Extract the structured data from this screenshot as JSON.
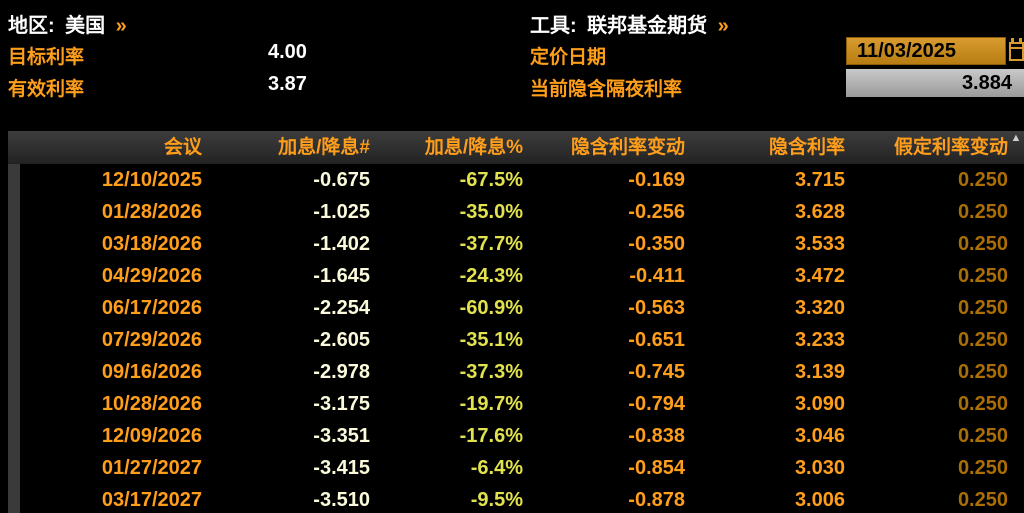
{
  "colors": {
    "orange": "#ff9e1b",
    "white": "#ffffff",
    "pale_yellow": "#fbfbdc",
    "yellow": "#e2e24e",
    "dim_orange": "#a96e05",
    "amber_top": "#d79b2f",
    "amber_bottom": "#b87d12",
    "gray_top": "#c9c9c9",
    "gray_bottom": "#9a9a9a",
    "header_top": "#3d3d3d",
    "header_bottom": "#222222",
    "gutter": "#3a3a3a"
  },
  "top": {
    "region": {
      "label": "地区:",
      "value": "美国",
      "chevron": "»"
    },
    "tool": {
      "label": "工具:",
      "value": "联邦基金期货",
      "chevron": "»"
    },
    "target_rate": {
      "label": "目标利率",
      "value": "4.00"
    },
    "effective_rate": {
      "label": "有效利率",
      "value": "3.87"
    },
    "pricing_date": {
      "label": "定价日期",
      "value": "11/03/2025"
    },
    "implied_overnight": {
      "label": "当前隐含隔夜利率",
      "value": "3.884"
    }
  },
  "table": {
    "columns": [
      "会议",
      "加息/降息#",
      "加息/降息%",
      "隐含利率变动",
      "隐含利率",
      "假定利率变动"
    ],
    "scroll_arrow": "▲",
    "rows": [
      [
        "12/10/2025",
        "-0.675",
        "-67.5%",
        "-0.169",
        "3.715",
        "0.250"
      ],
      [
        "01/28/2026",
        "-1.025",
        "-35.0%",
        "-0.256",
        "3.628",
        "0.250"
      ],
      [
        "03/18/2026",
        "-1.402",
        "-37.7%",
        "-0.350",
        "3.533",
        "0.250"
      ],
      [
        "04/29/2026",
        "-1.645",
        "-24.3%",
        "-0.411",
        "3.472",
        "0.250"
      ],
      [
        "06/17/2026",
        "-2.254",
        "-60.9%",
        "-0.563",
        "3.320",
        "0.250"
      ],
      [
        "07/29/2026",
        "-2.605",
        "-35.1%",
        "-0.651",
        "3.233",
        "0.250"
      ],
      [
        "09/16/2026",
        "-2.978",
        "-37.3%",
        "-0.745",
        "3.139",
        "0.250"
      ],
      [
        "10/28/2026",
        "-3.175",
        "-19.7%",
        "-0.794",
        "3.090",
        "0.250"
      ],
      [
        "12/09/2026",
        "-3.351",
        "-17.6%",
        "-0.838",
        "3.046",
        "0.250"
      ],
      [
        "01/27/2027",
        "-3.415",
        "-6.4%",
        "-0.854",
        "3.030",
        "0.250"
      ],
      [
        "03/17/2027",
        "-3.510",
        "-9.5%",
        "-0.878",
        "3.006",
        "0.250"
      ]
    ]
  }
}
